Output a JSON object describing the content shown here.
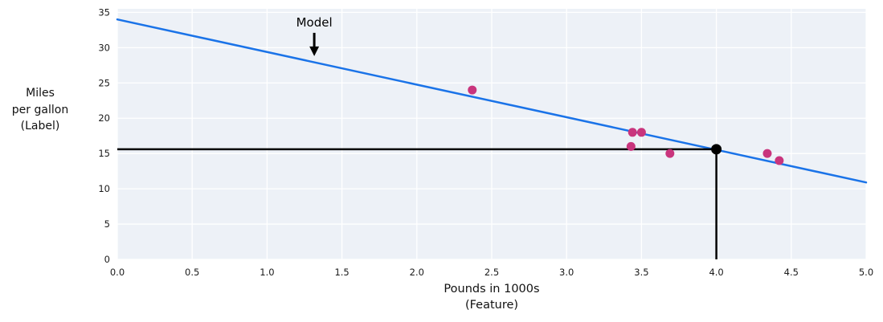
{
  "figure": {
    "background": "#ffffff",
    "plot_background": "#edf1f7",
    "grid_color": "#ffffff"
  },
  "labels": {
    "ylabel_lines": [
      "Miles",
      "per gallon",
      "(Label)"
    ],
    "xlabel_lines": [
      "Pounds in 1000s",
      "(Feature)"
    ]
  },
  "chart_data": {
    "type": "scatter",
    "title": "",
    "xlabel": "Pounds in 1000s (Feature)",
    "ylabel": "Miles per gallon (Label)",
    "xlim": [
      0,
      5
    ],
    "ylim": [
      0,
      35.5
    ],
    "grid": true,
    "legend": "none",
    "x_ticks": [
      0,
      0.5,
      1,
      1.5,
      2,
      2.5,
      3,
      3.5,
      4,
      4.5,
      5
    ],
    "x_tick_labels": [
      "0.0",
      "0.5",
      "1.0",
      "1.5",
      "2.0",
      "2.5",
      "3.0",
      "3.5",
      "4.0",
      "4.5",
      "5.0"
    ],
    "y_ticks": [
      0,
      5,
      10,
      15,
      20,
      25,
      30,
      35
    ],
    "y_tick_labels": [
      "0",
      "5",
      "10",
      "15",
      "20",
      "25",
      "30",
      "35"
    ],
    "points": {
      "color": "#c9357d",
      "radius": 5.5,
      "data": [
        {
          "x": 2.37,
          "y": 24
        },
        {
          "x": 3.43,
          "y": 16
        },
        {
          "x": 3.44,
          "y": 18
        },
        {
          "x": 3.5,
          "y": 18
        },
        {
          "x": 3.69,
          "y": 15
        },
        {
          "x": 4.34,
          "y": 15
        },
        {
          "x": 4.42,
          "y": 14
        }
      ]
    },
    "model_line": {
      "color": "#1a73e8",
      "width": 2.5,
      "x0": 0,
      "y0": 34.0,
      "x1": 5,
      "y1": 10.9
    },
    "prediction": {
      "color": "#000000",
      "line_width": 2.5,
      "dot_radius": 6.5,
      "x": 4.0,
      "y": 15.6
    },
    "annotation": {
      "text": "Model",
      "x": 1.315,
      "text_y": 33.0,
      "arrow_from_y": 32.1,
      "arrow_to_y": 28.8
    }
  }
}
